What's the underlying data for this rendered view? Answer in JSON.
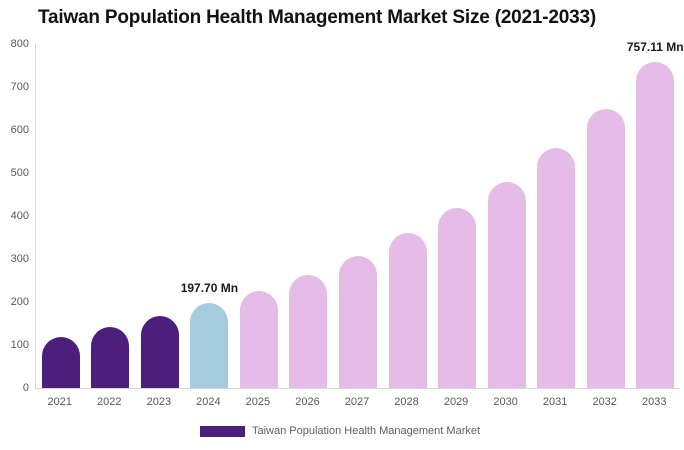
{
  "page": {
    "title": "Taiwan Population Health Management Market Size (2021-2033)"
  },
  "chart_data": {
    "type": "bar",
    "title": "Taiwan Population Health Management Market Size (2021-2033)",
    "categories": [
      "2021",
      "2022",
      "2023",
      "2024",
      "2025",
      "2026",
      "2027",
      "2028",
      "2029",
      "2030",
      "2031",
      "2032",
      "2033"
    ],
    "values": [
      119,
      141,
      167,
      197.7,
      226,
      263,
      306,
      360,
      418,
      478,
      558,
      649,
      757.11
    ],
    "xlabel": "",
    "ylabel": "",
    "ylim": [
      0,
      800
    ],
    "y_ticks": [
      0,
      100,
      200,
      300,
      400,
      500,
      600,
      700,
      800
    ],
    "grid": false,
    "legend_position": "bottom",
    "legend": [
      {
        "label": "Taiwan Population Health Management Market",
        "color": "#4C1F7D"
      }
    ],
    "data_labels": [
      {
        "category": "2024",
        "text": "197.70 Mn"
      },
      {
        "category": "2033",
        "text": "757.11 Mn"
      }
    ],
    "segment_colors": {
      "historical": "#4C1F7D",
      "base_year": "#A5CBDF",
      "forecast": "#E5BCE8"
    },
    "bar_colors": [
      "#4C1F7D",
      "#4C1F7D",
      "#4C1F7D",
      "#A5CBDF",
      "#E5BCE8",
      "#E5BCE8",
      "#E5BCE8",
      "#E5BCE8",
      "#E5BCE8",
      "#E5BCE8",
      "#E5BCE8",
      "#E5BCE8",
      "#E5BCE8"
    ]
  },
  "colors": {
    "background": "#ffffff",
    "title_text": "#111111",
    "axis_text": "#595959",
    "axis_line": "#d9d9d9",
    "data_label_text": "#1a1a1a",
    "legend_text": "#5f5f5f"
  }
}
